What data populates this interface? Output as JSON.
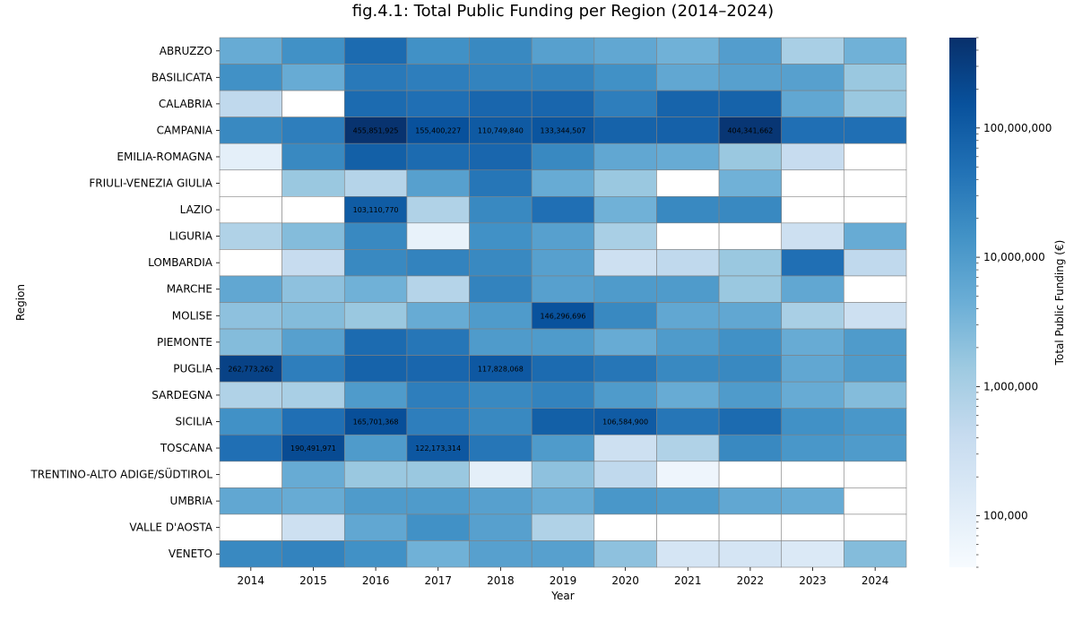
{
  "chart_data": {
    "type": "heatmap",
    "title": "fig.4.1: Total Public Funding per Region (2014–2024)",
    "xlabel": "Year",
    "ylabel": "Region",
    "colorbar_label": "Total Public Funding (€)",
    "colorbar_scale": "log",
    "colorbar_range": [
      40000,
      500000000
    ],
    "colorbar_ticks": [
      {
        "value": 100000,
        "label": "100,000"
      },
      {
        "value": 1000000,
        "label": "1,000,000"
      },
      {
        "value": 10000000,
        "label": "10,000,000"
      },
      {
        "value": 100000000,
        "label": "100,000,000"
      }
    ],
    "colormap": [
      "#f7fbff",
      "#deebf7",
      "#c6dbef",
      "#9ecae1",
      "#6baed6",
      "#4292c6",
      "#2171b5",
      "#08519c",
      "#08306b"
    ],
    "columns": [
      "2014",
      "2015",
      "2016",
      "2017",
      "2018",
      "2019",
      "2020",
      "2021",
      "2022",
      "2023",
      "2024"
    ],
    "rows": [
      "ABRUZZO",
      "BASILICATA",
      "CALABRIA",
      "CAMPANIA",
      "EMILIA-ROMAGNA",
      "FRIULI-VENEZIA GIULIA",
      "LAZIO",
      "LIGURIA",
      "LOMBARDIA",
      "MARCHE",
      "MOLISE",
      "PIEMONTE",
      "PUGLIA",
      "SARDEGNA",
      "SICILIA",
      "TOSCANA",
      "TRENTINO-ALTO ADIGE/SÜDTIROL",
      "UMBRIA",
      "VALLE D'AOSTA",
      "VENETO"
    ],
    "values": [
      [
        5000000,
        15000000,
        60000000,
        15000000,
        20000000,
        8000000,
        6000000,
        4000000,
        9000000,
        1000000,
        4000000
      ],
      [
        15000000,
        5000000,
        35000000,
        30000000,
        25000000,
        25000000,
        15000000,
        6000000,
        8000000,
        8000000,
        1500000
      ],
      [
        500000,
        null,
        60000000,
        50000000,
        70000000,
        70000000,
        30000000,
        75000000,
        80000000,
        6000000,
        1500000
      ],
      [
        20000000,
        30000000,
        455851925,
        155400227,
        110749840,
        133344507,
        80000000,
        85000000,
        404341662,
        50000000,
        50000000
      ],
      [
        100000,
        20000000,
        90000000,
        60000000,
        70000000,
        20000000,
        6000000,
        5000000,
        1500000,
        400000,
        null
      ],
      [
        null,
        1500000,
        700000,
        8000000,
        40000000,
        5000000,
        1500000,
        null,
        4000000,
        null,
        null
      ],
      [
        null,
        null,
        103110770,
        800000,
        20000000,
        50000000,
        4000000,
        20000000,
        20000000,
        null,
        null
      ],
      [
        800000,
        2500000,
        20000000,
        80000,
        15000000,
        8000000,
        1000000,
        null,
        null,
        300000,
        5000000
      ],
      [
        null,
        400000,
        20000000,
        25000000,
        20000000,
        8000000,
        300000,
        500000,
        1500000,
        50000000,
        500000
      ],
      [
        6000000,
        2000000,
        4000000,
        700000,
        25000000,
        8000000,
        10000000,
        10000000,
        1500000,
        6000000,
        null
      ],
      [
        2000000,
        2500000,
        1500000,
        5000000,
        10000000,
        146296696,
        20000000,
        6000000,
        6000000,
        1000000,
        300000
      ],
      [
        2500000,
        8000000,
        60000000,
        40000000,
        10000000,
        10000000,
        5000000,
        10000000,
        15000000,
        5000000,
        10000000
      ],
      [
        262773262,
        30000000,
        80000000,
        70000000,
        117828068,
        60000000,
        40000000,
        20000000,
        20000000,
        6000000,
        10000000
      ],
      [
        800000,
        1000000,
        10000000,
        30000000,
        20000000,
        25000000,
        10000000,
        5000000,
        10000000,
        5000000,
        2500000
      ],
      [
        15000000,
        50000000,
        165701368,
        30000000,
        20000000,
        90000000,
        106584900,
        40000000,
        60000000,
        15000000,
        12000000
      ],
      [
        50000000,
        190491971,
        10000000,
        122173314,
        40000000,
        10000000,
        300000,
        800000,
        20000000,
        12000000,
        10000000
      ],
      [
        null,
        5000000,
        1500000,
        1500000,
        100000,
        2000000,
        500000,
        60000,
        null,
        null,
        null
      ],
      [
        6000000,
        5000000,
        10000000,
        10000000,
        8000000,
        5000000,
        12000000,
        10000000,
        6000000,
        5000000,
        null
      ],
      [
        null,
        300000,
        6000000,
        15000000,
        8000000,
        800000,
        null,
        null,
        null,
        null,
        null
      ],
      [
        20000000,
        25000000,
        15000000,
        4000000,
        8000000,
        8000000,
        2000000,
        200000,
        200000,
        150000,
        2500000
      ]
    ],
    "annotated_cells": [
      {
        "row": 3,
        "col": 2,
        "label": "455,851,925"
      },
      {
        "row": 3,
        "col": 3,
        "label": "155,400,227"
      },
      {
        "row": 3,
        "col": 4,
        "label": "110,749,840"
      },
      {
        "row": 3,
        "col": 5,
        "label": "133,344,507"
      },
      {
        "row": 3,
        "col": 8,
        "label": "404,341,662"
      },
      {
        "row": 6,
        "col": 2,
        "label": "103,110,770"
      },
      {
        "row": 10,
        "col": 5,
        "label": "146,296,696"
      },
      {
        "row": 12,
        "col": 0,
        "label": "262,773,262"
      },
      {
        "row": 12,
        "col": 4,
        "label": "117,828,068"
      },
      {
        "row": 14,
        "col": 2,
        "label": "165,701,368"
      },
      {
        "row": 14,
        "col": 6,
        "label": "106,584,900"
      },
      {
        "row": 15,
        "col": 1,
        "label": "190,491,971"
      },
      {
        "row": 15,
        "col": 3,
        "label": "122,173,314"
      }
    ],
    "grid": true
  }
}
